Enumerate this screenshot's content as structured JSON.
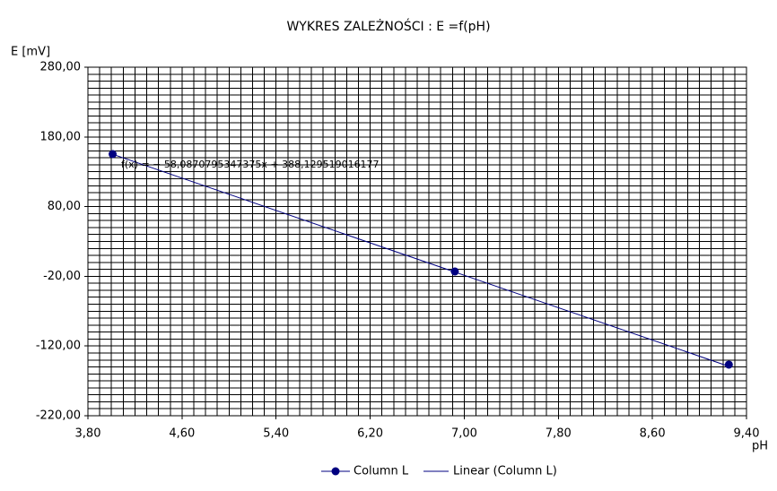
{
  "chart_data": {
    "type": "scatter",
    "title": "WYKRES ZALEŻNOŚCI :  E =f(pH)",
    "y_label": "E [mV]",
    "x_label": "pH",
    "series": [
      {
        "name": "Column L",
        "color": "#000080",
        "x": [
          4.01,
          6.92,
          9.25
        ],
        "values": [
          155.3,
          -13,
          -146.7
        ]
      }
    ],
    "trendline": {
      "name": "Linear (Column L)",
      "color": "#000080",
      "slope": -58.0870795347375,
      "intercept": 388.129519016177,
      "equation": "f(x) = − 58,0870795347375x + 388,129519016177"
    },
    "xlim": [
      3.8,
      9.4
    ],
    "xticks": [
      {
        "value": 3.8,
        "label": "3,80"
      },
      {
        "value": 4.6,
        "label": "4,60"
      },
      {
        "value": 5.4,
        "label": "5,40"
      },
      {
        "value": 6.2,
        "label": "6,20"
      },
      {
        "value": 7.0,
        "label": "7,00"
      },
      {
        "value": 7.8,
        "label": "7,80"
      },
      {
        "value": 8.6,
        "label": "8,60"
      },
      {
        "value": 9.4,
        "label": "9,40"
      }
    ],
    "ylim": [
      -220,
      280
    ],
    "yticks": [
      {
        "value": -220,
        "label": "-220,00"
      },
      {
        "value": -120,
        "label": "-120,00"
      },
      {
        "value": -20,
        "label": "-20,00"
      },
      {
        "value": 80,
        "label": "80,00"
      },
      {
        "value": 180,
        "label": "180,00"
      },
      {
        "value": 280,
        "label": "280,00"
      }
    ],
    "grid": true,
    "legend": "bottom"
  }
}
